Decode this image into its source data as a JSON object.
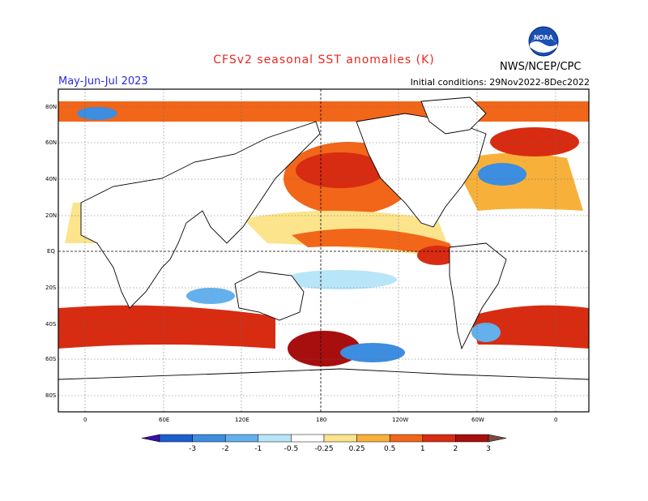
{
  "title": "CFSv2 seasonal SST anomalies (K)",
  "season": "May-Jun-Jul 2023",
  "initial_conditions": "Initial conditions: 29Nov2022-8Dec2022",
  "agency": "NWS/NCEP/CPC",
  "logo_text": "NOAA",
  "lat_labels": [
    "80N",
    "60N",
    "40N",
    "20N",
    "EQ",
    "20S",
    "40S",
    "60S",
    "80S"
  ],
  "lon_labels": [
    "0",
    "60E",
    "120E",
    "180",
    "120W",
    "60W",
    "0"
  ],
  "colorbar": {
    "levels": [
      "-3",
      "-2",
      "-1",
      "-0.5",
      "-0.25",
      "0.25",
      "0.5",
      "1",
      "2",
      "3"
    ],
    "colors": [
      "#3a0ea8",
      "#1d5fd0",
      "#3d8de0",
      "#64b0ec",
      "#b8e6f8",
      "#ffffff",
      "#fbe48c",
      "#f7b13a",
      "#f2661a",
      "#d72c12",
      "#a70f0e",
      "#7a4a3e"
    ]
  },
  "palette": {
    "title": "#e8281e",
    "season": "#2a2ae0",
    "land": "#ffffff",
    "coast": "#000000"
  }
}
